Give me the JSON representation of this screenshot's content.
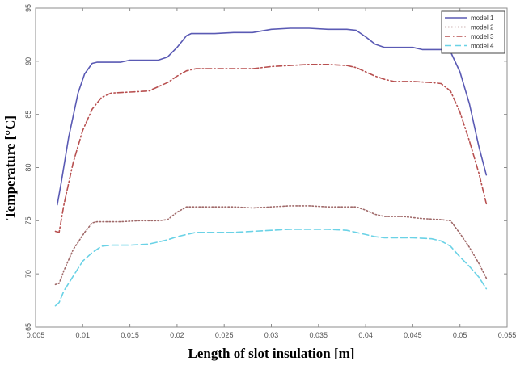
{
  "chart_data": {
    "type": "line",
    "title": "",
    "xlabel": "Length of slot insulation [m]",
    "ylabel": "Temperature [°C]",
    "xlim": [
      0.005,
      0.055
    ],
    "ylim": [
      65,
      95
    ],
    "xticks": [
      "0.005",
      "0.01",
      "0.015",
      "0.02",
      "0.025",
      "0.03",
      "0.035",
      "0.04",
      "0.045",
      "0.05",
      "0.055"
    ],
    "yticks": [
      "65",
      "70",
      "75",
      "80",
      "85",
      "90",
      "95"
    ],
    "grid": false,
    "legend_position": "top-right",
    "series": [
      {
        "name": "model 1",
        "color": "#5a5ab4",
        "dash": "solid",
        "x": [
          0.0073,
          0.0077,
          0.0085,
          0.0095,
          0.0102,
          0.011,
          0.0115,
          0.0125,
          0.014,
          0.015,
          0.016,
          0.017,
          0.018,
          0.019,
          0.02,
          0.021,
          0.0215,
          0.022,
          0.024,
          0.026,
          0.028,
          0.03,
          0.032,
          0.034,
          0.036,
          0.038,
          0.039,
          0.04,
          0.041,
          0.042,
          0.043,
          0.045,
          0.046,
          0.047,
          0.048,
          0.049,
          0.05,
          0.051,
          0.052,
          0.0528
        ],
        "y": [
          76.5,
          78.5,
          82.8,
          87.0,
          88.8,
          89.8,
          89.9,
          89.9,
          89.9,
          90.1,
          90.1,
          90.1,
          90.1,
          90.4,
          91.3,
          92.4,
          92.6,
          92.6,
          92.6,
          92.7,
          92.7,
          93.0,
          93.1,
          93.1,
          93.0,
          93.0,
          92.9,
          92.3,
          91.6,
          91.3,
          91.3,
          91.3,
          91.1,
          91.1,
          91.1,
          90.9,
          89.0,
          86.0,
          82.0,
          79.3
        ]
      },
      {
        "name": "model 2",
        "color": "#a06a6a",
        "dash": "dotted",
        "x": [
          0.0071,
          0.0075,
          0.008,
          0.009,
          0.0102,
          0.011,
          0.0115,
          0.0125,
          0.014,
          0.016,
          0.018,
          0.019,
          0.02,
          0.021,
          0.022,
          0.024,
          0.026,
          0.028,
          0.03,
          0.032,
          0.034,
          0.036,
          0.038,
          0.039,
          0.04,
          0.041,
          0.042,
          0.044,
          0.046,
          0.048,
          0.049,
          0.05,
          0.051,
          0.052,
          0.0528
        ],
        "y": [
          69.0,
          69.1,
          70.3,
          72.3,
          73.9,
          74.8,
          74.9,
          74.9,
          74.9,
          75.0,
          75.0,
          75.1,
          75.8,
          76.3,
          76.3,
          76.3,
          76.3,
          76.2,
          76.3,
          76.4,
          76.4,
          76.3,
          76.3,
          76.3,
          76.0,
          75.6,
          75.4,
          75.4,
          75.2,
          75.1,
          75.0,
          73.8,
          72.5,
          71.0,
          69.6
        ]
      },
      {
        "name": "model 3",
        "color": "#b85050",
        "dash": "dash-dot",
        "x": [
          0.0071,
          0.0075,
          0.008,
          0.009,
          0.01,
          0.011,
          0.012,
          0.013,
          0.015,
          0.017,
          0.018,
          0.019,
          0.02,
          0.021,
          0.022,
          0.024,
          0.026,
          0.028,
          0.03,
          0.032,
          0.034,
          0.036,
          0.038,
          0.039,
          0.04,
          0.041,
          0.042,
          0.043,
          0.045,
          0.047,
          0.048,
          0.049,
          0.05,
          0.051,
          0.052,
          0.0528
        ],
        "y": [
          74.0,
          73.9,
          76.5,
          80.5,
          83.5,
          85.5,
          86.6,
          87.0,
          87.1,
          87.2,
          87.6,
          88.0,
          88.6,
          89.1,
          89.3,
          89.3,
          89.3,
          89.3,
          89.5,
          89.6,
          89.7,
          89.7,
          89.6,
          89.4,
          89.0,
          88.6,
          88.3,
          88.1,
          88.1,
          88.0,
          87.9,
          87.2,
          85.2,
          82.5,
          79.5,
          76.6
        ]
      },
      {
        "name": "model 4",
        "color": "#6ad2e6",
        "dash": "dashed",
        "x": [
          0.0071,
          0.0075,
          0.008,
          0.009,
          0.01,
          0.011,
          0.0115,
          0.012,
          0.013,
          0.015,
          0.017,
          0.018,
          0.019,
          0.02,
          0.021,
          0.022,
          0.024,
          0.026,
          0.028,
          0.03,
          0.032,
          0.034,
          0.036,
          0.038,
          0.039,
          0.04,
          0.041,
          0.042,
          0.043,
          0.045,
          0.047,
          0.048,
          0.049,
          0.05,
          0.051,
          0.052,
          0.0528
        ],
        "y": [
          67.0,
          67.3,
          68.4,
          69.8,
          71.2,
          72.0,
          72.3,
          72.6,
          72.7,
          72.7,
          72.8,
          73.0,
          73.2,
          73.5,
          73.7,
          73.9,
          73.9,
          73.9,
          74.0,
          74.1,
          74.2,
          74.2,
          74.2,
          74.1,
          73.9,
          73.7,
          73.5,
          73.4,
          73.4,
          73.4,
          73.3,
          73.1,
          72.6,
          71.6,
          70.7,
          69.7,
          68.6
        ]
      }
    ]
  }
}
